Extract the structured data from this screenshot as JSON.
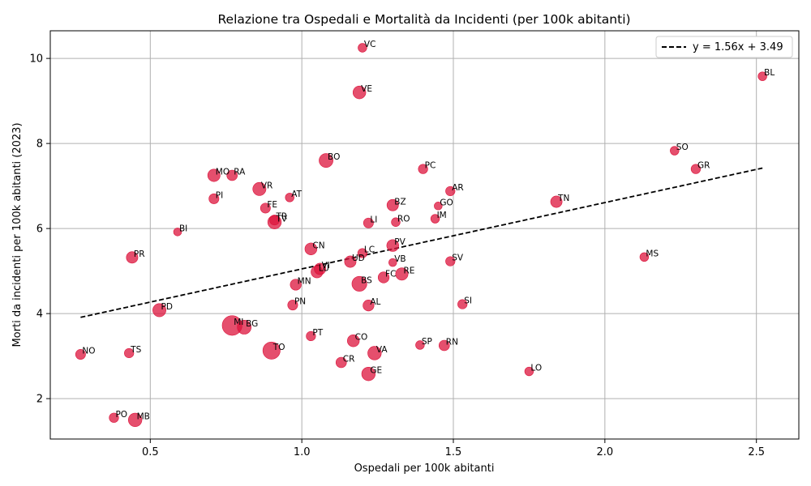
{
  "chart_data": {
    "type": "scatter",
    "title": "Relazione tra Ospedali e Mortalità da Incidenti (per 100k abitanti)",
    "xlabel": "Ospedali per 100k abitanti",
    "ylabel": "Morti da incidenti per 100k abitanti (2023)",
    "xlim": [
      0.17,
      2.64
    ],
    "ylim": [
      1.05,
      10.65
    ],
    "xticks": [
      0.5,
      1.0,
      1.5,
      2.0,
      2.5
    ],
    "xtick_labels": [
      "0.5",
      "1.0",
      "1.5",
      "2.0",
      "2.5"
    ],
    "yticks": [
      2,
      4,
      6,
      8,
      10
    ],
    "ytick_labels": [
      "2",
      "4",
      "6",
      "8",
      "10"
    ],
    "grid": true,
    "legend_position": "top-right",
    "point_color": "#dc143c",
    "points": [
      {
        "label": "VC",
        "x": 1.2,
        "y": 10.25,
        "s": 4
      },
      {
        "label": "VE",
        "x": 1.19,
        "y": 9.2,
        "s": 12
      },
      {
        "label": "BL",
        "x": 2.52,
        "y": 9.58,
        "s": 4
      },
      {
        "label": "BO",
        "x": 1.08,
        "y": 7.6,
        "s": 15
      },
      {
        "label": "SO",
        "x": 2.23,
        "y": 7.83,
        "s": 4
      },
      {
        "label": "GR",
        "x": 2.3,
        "y": 7.4,
        "s": 5
      },
      {
        "label": "PC",
        "x": 1.4,
        "y": 7.4,
        "s": 5
      },
      {
        "label": "MO",
        "x": 0.71,
        "y": 7.25,
        "s": 11
      },
      {
        "label": "RA",
        "x": 0.77,
        "y": 7.25,
        "s": 7
      },
      {
        "label": "VR",
        "x": 0.86,
        "y": 6.93,
        "s": 13
      },
      {
        "label": "AR",
        "x": 1.49,
        "y": 6.88,
        "s": 5
      },
      {
        "label": "AT",
        "x": 0.96,
        "y": 6.73,
        "s": 4
      },
      {
        "label": "PI",
        "x": 0.71,
        "y": 6.7,
        "s": 6
      },
      {
        "label": "TN",
        "x": 1.84,
        "y": 6.63,
        "s": 9
      },
      {
        "label": "BZ",
        "x": 1.3,
        "y": 6.55,
        "s": 9
      },
      {
        "label": "GO",
        "x": 1.45,
        "y": 6.53,
        "s": 3
      },
      {
        "label": "FE",
        "x": 0.88,
        "y": 6.48,
        "s": 6
      },
      {
        "label": "IM",
        "x": 1.44,
        "y": 6.23,
        "s": 4
      },
      {
        "label": "TR",
        "x": 0.91,
        "y": 6.2,
        "s": 6
      },
      {
        "label": "TV",
        "x": 0.91,
        "y": 6.15,
        "s": 14
      },
      {
        "label": "LI",
        "x": 1.22,
        "y": 6.13,
        "s": 6
      },
      {
        "label": "RO",
        "x": 1.31,
        "y": 6.15,
        "s": 4
      },
      {
        "label": "BI",
        "x": 0.59,
        "y": 5.92,
        "s": 3
      },
      {
        "label": "PV",
        "x": 1.3,
        "y": 5.6,
        "s": 10
      },
      {
        "label": "CN",
        "x": 1.03,
        "y": 5.52,
        "s": 10
      },
      {
        "label": "LC",
        "x": 1.2,
        "y": 5.42,
        "s": 5
      },
      {
        "label": "MS",
        "x": 2.13,
        "y": 5.33,
        "s": 4
      },
      {
        "label": "PR",
        "x": 0.44,
        "y": 5.32,
        "s": 9
      },
      {
        "label": "SV",
        "x": 1.49,
        "y": 5.23,
        "s": 5
      },
      {
        "label": "UD",
        "x": 1.16,
        "y": 5.22,
        "s": 9
      },
      {
        "label": "VB",
        "x": 1.3,
        "y": 5.2,
        "s": 3
      },
      {
        "label": "VI",
        "x": 1.06,
        "y": 5.05,
        "s": 9
      },
      {
        "label": "LU",
        "x": 1.05,
        "y": 4.98,
        "s": 10
      },
      {
        "label": "RE",
        "x": 1.33,
        "y": 4.93,
        "s": 11
      },
      {
        "label": "FC",
        "x": 1.27,
        "y": 4.85,
        "s": 8
      },
      {
        "label": "BS",
        "x": 1.19,
        "y": 4.7,
        "s": 18
      },
      {
        "label": "MN",
        "x": 0.98,
        "y": 4.68,
        "s": 8
      },
      {
        "label": "SI",
        "x": 1.53,
        "y": 4.22,
        "s": 5
      },
      {
        "label": "PN",
        "x": 0.97,
        "y": 4.2,
        "s": 6
      },
      {
        "label": "AL",
        "x": 1.22,
        "y": 4.19,
        "s": 8
      },
      {
        "label": "PD",
        "x": 0.53,
        "y": 4.08,
        "s": 13
      },
      {
        "label": "MI",
        "x": 0.77,
        "y": 3.72,
        "s": 36
      },
      {
        "label": "BG",
        "x": 0.81,
        "y": 3.68,
        "s": 15
      },
      {
        "label": "PT",
        "x": 1.03,
        "y": 3.47,
        "s": 5
      },
      {
        "label": "CO",
        "x": 1.17,
        "y": 3.36,
        "s": 10
      },
      {
        "label": "SP",
        "x": 1.39,
        "y": 3.26,
        "s": 4
      },
      {
        "label": "RN",
        "x": 1.47,
        "y": 3.25,
        "s": 7
      },
      {
        "label": "TO",
        "x": 0.9,
        "y": 3.13,
        "s": 26
      },
      {
        "label": "VA",
        "x": 1.24,
        "y": 3.07,
        "s": 14
      },
      {
        "label": "TS",
        "x": 0.43,
        "y": 3.07,
        "s": 5
      },
      {
        "label": "NO",
        "x": 0.27,
        "y": 3.04,
        "s": 6
      },
      {
        "label": "CR",
        "x": 1.13,
        "y": 2.85,
        "s": 7
      },
      {
        "label": "LO",
        "x": 1.75,
        "y": 2.64,
        "s": 4
      },
      {
        "label": "GE",
        "x": 1.22,
        "y": 2.58,
        "s": 14
      },
      {
        "label": "PO",
        "x": 0.38,
        "y": 1.55,
        "s": 5
      },
      {
        "label": "MB",
        "x": 0.45,
        "y": 1.5,
        "s": 14
      }
    ],
    "trendline": {
      "label": "y = 1.56x + 3.49",
      "slope": 1.56,
      "intercept": 3.49,
      "x_range": [
        0.27,
        2.52
      ],
      "style": "dashed",
      "color": "#000000"
    }
  }
}
